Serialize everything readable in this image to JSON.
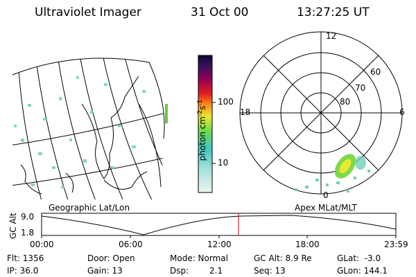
{
  "header": {
    "title": "Ultraviolet Imager",
    "date": "31 Oct 00",
    "time": "13:27:25 UT"
  },
  "colorbar": {
    "label": "photon cm",
    "exp1": "-2",
    "mid": "s",
    "exp2": "-1",
    "tick_100": "100",
    "tick_10": "10"
  },
  "polar_plot": {
    "mlt_top": "12",
    "mlt_left": "18",
    "mlt_right": "6",
    "mlt_bottom": "0",
    "lat_60": "60",
    "lat_70": "70",
    "lat_80": "80"
  },
  "map_labels": {
    "left": "Geographic Lat/Lon",
    "right": "Apex MLat/MLT"
  },
  "altitude_plot": {
    "ylabel": "GC Alt",
    "ymax": "9.0",
    "ymin": "1.8",
    "xticks": [
      "00:00",
      "06:00",
      "12:00",
      "18:00",
      "23:59"
    ],
    "marker_color": "#cc0000"
  },
  "status": {
    "flt": "Flt: 1356",
    "ip": "IP: 36.0",
    "door": "Door: Open",
    "gain": "Gain: 13",
    "mode": "Mode: Normal",
    "dsp_label": "Dsp:",
    "dsp_value": "2.1",
    "gcalt": "GC Alt: 8.9 Re",
    "seq": "Seq: 13",
    "glat": "GLat:  -3.0",
    "glon": "GLon: 144.1"
  }
}
